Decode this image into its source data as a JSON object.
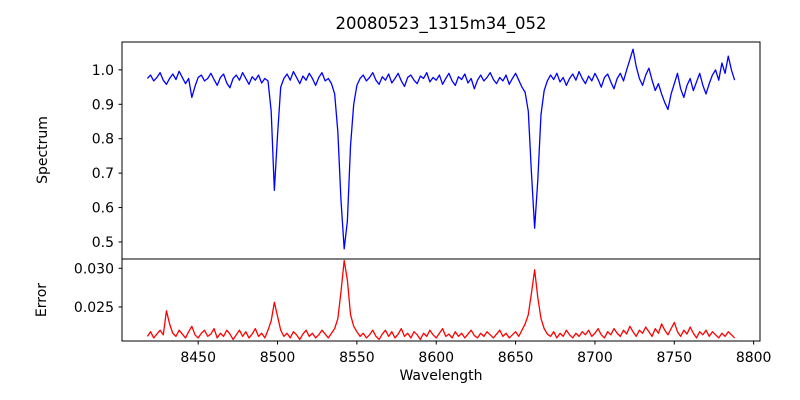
{
  "chart_data": {
    "type": "line",
    "title": "20080523_1315m34_052",
    "xlabel": "Wavelength",
    "xlim": [
      8402,
      8804
    ],
    "xticks": [
      8450,
      8500,
      8550,
      8600,
      8650,
      8700,
      8750,
      8800
    ],
    "xtick_labels": [
      "8450",
      "8500",
      "8550",
      "8600",
      "8650",
      "8700",
      "8750",
      "8800"
    ],
    "grid": false,
    "legend": "none",
    "x_start": 8418,
    "x_step": 2,
    "n_points": 186,
    "panels": [
      {
        "ylabel": "Spectrum",
        "series_name": "spectrum",
        "color": "#0000ff",
        "ylim": [
          0.4505,
          1.081
        ],
        "yticks": [
          0.5,
          0.6,
          0.7,
          0.8,
          0.9,
          1.0
        ],
        "ytick_labels": [
          "0.5",
          "0.6",
          "0.7",
          "0.8",
          "0.9",
          "1.0"
        ],
        "values": [
          0.975,
          0.985,
          0.968,
          0.978,
          0.992,
          0.97,
          0.958,
          0.975,
          0.988,
          0.972,
          0.996,
          0.978,
          0.96,
          0.975,
          0.92,
          0.952,
          0.978,
          0.985,
          0.968,
          0.975,
          0.99,
          0.972,
          0.955,
          0.978,
          0.988,
          0.962,
          0.948,
          0.975,
          0.985,
          0.97,
          0.992,
          0.975,
          0.958,
          0.98,
          0.97,
          0.985,
          0.962,
          0.975,
          0.968,
          0.88,
          0.65,
          0.81,
          0.95,
          0.975,
          0.988,
          0.97,
          0.995,
          0.978,
          0.96,
          0.982,
          0.97,
          0.99,
          0.975,
          0.955,
          0.978,
          0.992,
          0.968,
          0.975,
          0.96,
          0.93,
          0.82,
          0.62,
          0.48,
          0.56,
          0.78,
          0.9,
          0.955,
          0.975,
          0.985,
          0.968,
          0.978,
          0.992,
          0.97,
          0.958,
          0.98,
          0.97,
          0.988,
          0.962,
          0.975,
          0.99,
          0.968,
          0.952,
          0.978,
          0.985,
          0.97,
          0.96,
          0.982,
          0.975,
          0.992,
          0.965,
          0.978,
          0.97,
          0.985,
          0.958,
          0.975,
          0.99,
          0.968,
          0.955,
          0.98,
          0.972,
          0.988,
          0.962,
          0.975,
          0.945,
          0.97,
          0.985,
          0.968,
          0.978,
          0.992,
          0.972,
          0.96,
          0.978,
          0.968,
          0.985,
          0.958,
          0.975,
          0.99,
          0.97,
          0.95,
          0.935,
          0.88,
          0.7,
          0.54,
          0.68,
          0.87,
          0.94,
          0.968,
          0.985,
          0.972,
          0.99,
          0.965,
          0.978,
          0.955,
          0.975,
          0.988,
          0.97,
          0.995,
          0.975,
          0.96,
          0.982,
          0.968,
          0.99,
          0.972,
          0.95,
          0.978,
          0.988,
          0.965,
          0.945,
          0.975,
          0.99,
          0.968,
          1.0,
          1.03,
          1.06,
          1.01,
          0.975,
          0.955,
          0.985,
          1.005,
          0.97,
          0.94,
          0.96,
          0.93,
          0.905,
          0.885,
          0.93,
          0.96,
          0.99,
          0.945,
          0.92,
          0.955,
          0.975,
          0.94,
          0.965,
          0.99,
          0.955,
          0.93,
          0.96,
          0.985,
          1.0,
          0.97,
          1.02,
          0.99,
          1.04,
          1.0,
          0.97
        ]
      },
      {
        "ylabel": "Error",
        "series_name": "error",
        "color": "#ff0000",
        "ylim": [
          0.0206,
          0.0312
        ],
        "yticks": [
          0.025,
          0.03
        ],
        "ytick_labels": [
          "0.025",
          "0.030"
        ],
        "values": [
          0.0212,
          0.0218,
          0.021,
          0.0215,
          0.022,
          0.0214,
          0.0245,
          0.0228,
          0.0216,
          0.0212,
          0.022,
          0.0215,
          0.021,
          0.0218,
          0.0225,
          0.0214,
          0.021,
          0.0216,
          0.022,
          0.0212,
          0.0215,
          0.0222,
          0.021,
          0.0216,
          0.0212,
          0.022,
          0.0215,
          0.0208,
          0.0214,
          0.022,
          0.0212,
          0.0218,
          0.021,
          0.0215,
          0.0222,
          0.0212,
          0.0216,
          0.021,
          0.022,
          0.0232,
          0.0256,
          0.0238,
          0.022,
          0.0212,
          0.0216,
          0.021,
          0.0218,
          0.0214,
          0.0208,
          0.0215,
          0.022,
          0.0212,
          0.0216,
          0.021,
          0.0214,
          0.022,
          0.0215,
          0.021,
          0.0216,
          0.0222,
          0.0235,
          0.027,
          0.031,
          0.0285,
          0.024,
          0.0225,
          0.0218,
          0.0212,
          0.0216,
          0.021,
          0.0214,
          0.022,
          0.0212,
          0.0208,
          0.0215,
          0.022,
          0.0212,
          0.0218,
          0.021,
          0.0215,
          0.0222,
          0.0212,
          0.0216,
          0.021,
          0.0218,
          0.0214,
          0.0208,
          0.0216,
          0.0212,
          0.022,
          0.0214,
          0.021,
          0.0216,
          0.0222,
          0.0212,
          0.0215,
          0.021,
          0.0218,
          0.0212,
          0.0216,
          0.021,
          0.0215,
          0.022,
          0.0213,
          0.021,
          0.0216,
          0.0212,
          0.0218,
          0.0214,
          0.021,
          0.0215,
          0.022,
          0.0212,
          0.0216,
          0.021,
          0.0214,
          0.0218,
          0.0212,
          0.022,
          0.0228,
          0.024,
          0.0268,
          0.0298,
          0.0262,
          0.0235,
          0.0222,
          0.0215,
          0.0212,
          0.0218,
          0.021,
          0.0216,
          0.0212,
          0.022,
          0.0214,
          0.021,
          0.0216,
          0.0212,
          0.0218,
          0.0214,
          0.022,
          0.0212,
          0.0216,
          0.0222,
          0.0214,
          0.021,
          0.0218,
          0.0214,
          0.0222,
          0.0216,
          0.0212,
          0.022,
          0.0215,
          0.0225,
          0.0218,
          0.0212,
          0.022,
          0.0216,
          0.0224,
          0.0218,
          0.0212,
          0.0222,
          0.0216,
          0.0228,
          0.022,
          0.0214,
          0.0222,
          0.023,
          0.0218,
          0.0212,
          0.022,
          0.0215,
          0.0224,
          0.0216,
          0.021,
          0.0218,
          0.0214,
          0.022,
          0.0212,
          0.0218,
          0.0214,
          0.021,
          0.0216,
          0.0212,
          0.0218,
          0.0214,
          0.021
        ]
      }
    ],
    "features": {
      "absorption_lines": [
        {
          "center_wavelength": 8498,
          "min_flux": 0.65
        },
        {
          "center_wavelength": 8542,
          "min_flux": 0.48
        },
        {
          "center_wavelength": 8662,
          "min_flux": 0.54
        }
      ],
      "error_peaks": [
        {
          "center_wavelength": 8430,
          "max_error": 0.0245
        },
        {
          "center_wavelength": 8498,
          "max_error": 0.0256
        },
        {
          "center_wavelength": 8542,
          "max_error": 0.031
        },
        {
          "center_wavelength": 8662,
          "max_error": 0.0298
        }
      ],
      "continuum_level": 0.98,
      "error_baseline": 0.0215,
      "data_range": [
        8418,
        8788
      ]
    }
  }
}
